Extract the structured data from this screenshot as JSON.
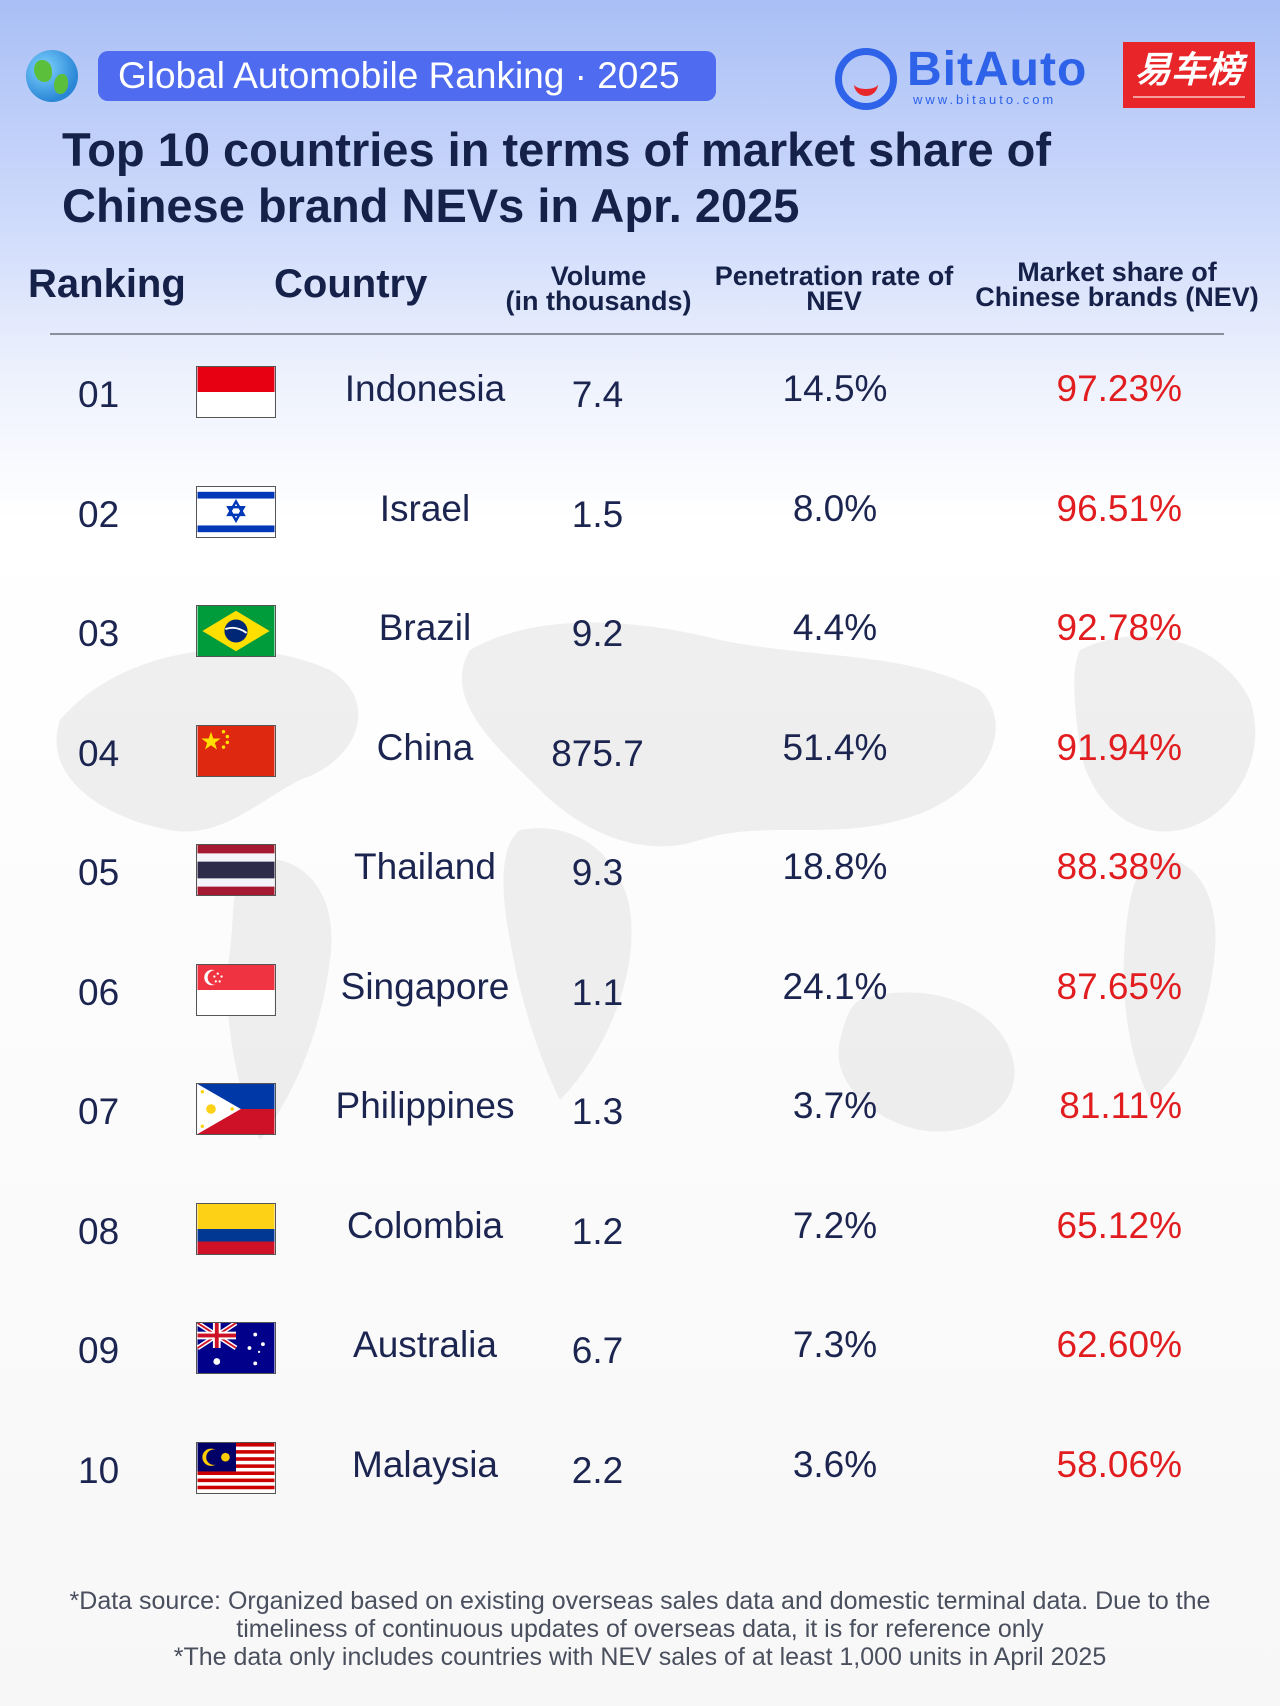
{
  "header": {
    "badge_text": "Global Automobile Ranking · 2025",
    "logo_name": "BitAuto",
    "logo_url_text": "www.bitauto.com",
    "red_badge_text": "易车榜",
    "icons": [
      "globe-icon",
      "bitauto-logo-icon"
    ],
    "colors": {
      "badge": "#4f6bf0",
      "logo": "#2d62e9",
      "red": "#e8262a",
      "share_text": "#e11d20"
    }
  },
  "title": {
    "line1": "Top 10 countries in terms of market share of",
    "line2": "Chinese brand NEVs in Apr. 2025"
  },
  "columns": {
    "ranking": "Ranking",
    "country": "Country",
    "volume_line1": "Volume",
    "volume_line2": "(in thousands)",
    "penetration_line1": "Penetration rate of",
    "penetration_line2": "NEV",
    "share_line1": "Market share of",
    "share_line2": "Chinese brands (NEV)"
  },
  "chart_data": {
    "type": "table",
    "columns": [
      "Ranking",
      "Country",
      "Volume (in thousands)",
      "Penetration rate of NEV",
      "Market share of Chinese brands (NEV)"
    ],
    "rows": [
      {
        "rank": "01",
        "country": "Indonesia",
        "volume": "7.4",
        "penetration": "14.5%",
        "share": "97.23%",
        "flag": "indonesia"
      },
      {
        "rank": "02",
        "country": "Israel",
        "volume": "1.5",
        "penetration": "8.0%",
        "share": "96.51%",
        "flag": "israel"
      },
      {
        "rank": "03",
        "country": "Brazil",
        "volume": "9.2",
        "penetration": "4.4%",
        "share": "92.78%",
        "flag": "brazil"
      },
      {
        "rank": "04",
        "country": "China",
        "volume": "875.7",
        "penetration": "51.4%",
        "share": "91.94%",
        "flag": "china"
      },
      {
        "rank": "05",
        "country": "Thailand",
        "volume": "9.3",
        "penetration": "18.8%",
        "share": "88.38%",
        "flag": "thailand"
      },
      {
        "rank": "06",
        "country": "Singapore",
        "volume": "1.1",
        "penetration": "24.1%",
        "share": "87.65%",
        "flag": "singapore"
      },
      {
        "rank": "07",
        "country": "Philippines",
        "volume": "1.3",
        "penetration": "3.7%",
        "share": "81.11%",
        "flag": "philippines"
      },
      {
        "rank": "08",
        "country": "Colombia",
        "volume": "1.2",
        "penetration": "7.2%",
        "share": "65.12%",
        "flag": "colombia"
      },
      {
        "rank": "09",
        "country": "Australia",
        "volume": "6.7",
        "penetration": "7.3%",
        "share": "62.60%",
        "flag": "australia"
      },
      {
        "rank": "10",
        "country": "Malaysia",
        "volume": "2.2",
        "penetration": "3.6%",
        "share": "58.06%",
        "flag": "malaysia"
      }
    ]
  },
  "footnote": {
    "line1": "*Data source: Organized based on existing overseas sales data and domestic terminal data. Due to the",
    "line2": "timeliness of continuous updates of overseas data, it is for reference only",
    "line3": "*The data only includes countries with NEV sales of at least 1,000 units in April 2025"
  }
}
